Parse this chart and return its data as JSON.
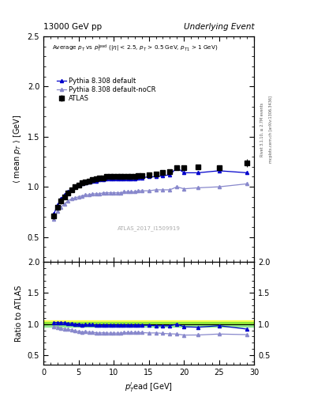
{
  "title_left": "13000 GeV pp",
  "title_right": "Underlying Event",
  "watermark": "ATLAS_2017_I1509919",
  "right_label_top": "Rivet 3.1.10, ≥ 2.7M events",
  "right_label_bottom": "mcplots.cern.ch [arXiv:1306.3436]",
  "ylim_main": [
    0.25,
    2.5
  ],
  "ylim_ratio": [
    0.35,
    2.0
  ],
  "xlim": [
    0,
    30
  ],
  "yticks_main": [
    0.5,
    1.0,
    1.5,
    2.0,
    2.5
  ],
  "yticks_ratio": [
    0.5,
    1.0,
    1.5,
    2.0
  ],
  "xticks": [
    0,
    5,
    10,
    15,
    20,
    25,
    30
  ],
  "atlas_x": [
    1.5,
    2.0,
    2.5,
    3.0,
    3.5,
    4.0,
    4.5,
    5.0,
    5.5,
    6.0,
    6.5,
    7.0,
    7.5,
    8.0,
    8.5,
    9.0,
    9.5,
    10.0,
    10.5,
    11.0,
    11.5,
    12.0,
    12.5,
    13.0,
    13.5,
    14.0,
    15.0,
    16.0,
    17.0,
    18.0,
    19.0,
    20.0,
    22.0,
    25.0,
    29.0
  ],
  "atlas_y": [
    0.71,
    0.8,
    0.86,
    0.9,
    0.94,
    0.97,
    1.0,
    1.02,
    1.04,
    1.05,
    1.06,
    1.07,
    1.08,
    1.09,
    1.09,
    1.1,
    1.1,
    1.1,
    1.1,
    1.1,
    1.1,
    1.1,
    1.1,
    1.1,
    1.11,
    1.11,
    1.12,
    1.13,
    1.14,
    1.15,
    1.19,
    1.19,
    1.2,
    1.19,
    1.24
  ],
  "atlas_yerr": [
    0.03,
    0.03,
    0.03,
    0.02,
    0.02,
    0.02,
    0.02,
    0.02,
    0.02,
    0.02,
    0.02,
    0.02,
    0.02,
    0.02,
    0.02,
    0.02,
    0.02,
    0.02,
    0.02,
    0.02,
    0.02,
    0.02,
    0.02,
    0.02,
    0.02,
    0.02,
    0.02,
    0.02,
    0.02,
    0.02,
    0.02,
    0.02,
    0.02,
    0.02,
    0.04
  ],
  "pythia_default_x": [
    1.5,
    2.0,
    2.5,
    3.0,
    3.5,
    4.0,
    4.5,
    5.0,
    5.5,
    6.0,
    6.5,
    7.0,
    7.5,
    8.0,
    8.5,
    9.0,
    9.5,
    10.0,
    10.5,
    11.0,
    11.5,
    12.0,
    12.5,
    13.0,
    13.5,
    14.0,
    15.0,
    16.0,
    17.0,
    18.0,
    19.0,
    20.0,
    22.0,
    25.0,
    29.0
  ],
  "pythia_default_y": [
    0.73,
    0.82,
    0.88,
    0.92,
    0.95,
    0.98,
    1.0,
    1.02,
    1.03,
    1.04,
    1.05,
    1.06,
    1.06,
    1.07,
    1.07,
    1.08,
    1.08,
    1.08,
    1.08,
    1.08,
    1.08,
    1.08,
    1.08,
    1.08,
    1.09,
    1.09,
    1.1,
    1.1,
    1.11,
    1.12,
    1.19,
    1.14,
    1.14,
    1.16,
    1.14
  ],
  "pythia_nocr_x": [
    1.5,
    2.0,
    2.5,
    3.0,
    3.5,
    4.0,
    4.5,
    5.0,
    5.5,
    6.0,
    6.5,
    7.0,
    7.5,
    8.0,
    8.5,
    9.0,
    9.5,
    10.0,
    10.5,
    11.0,
    11.5,
    12.0,
    12.5,
    13.0,
    13.5,
    14.0,
    15.0,
    16.0,
    17.0,
    18.0,
    19.0,
    20.0,
    22.0,
    25.0,
    29.0
  ],
  "pythia_nocr_y": [
    0.68,
    0.76,
    0.8,
    0.83,
    0.86,
    0.88,
    0.89,
    0.9,
    0.91,
    0.92,
    0.92,
    0.93,
    0.93,
    0.93,
    0.94,
    0.94,
    0.94,
    0.94,
    0.94,
    0.94,
    0.95,
    0.95,
    0.95,
    0.95,
    0.96,
    0.96,
    0.96,
    0.97,
    0.97,
    0.97,
    1.0,
    0.98,
    0.99,
    1.0,
    1.03
  ],
  "atlas_color": "#000000",
  "pythia_default_color": "#0000cc",
  "pythia_nocr_color": "#8888cc",
  "band_green_color": "#00cc00",
  "band_green_alpha": 0.35,
  "band_yellow_color": "#ffff00",
  "band_yellow_alpha": 0.6
}
